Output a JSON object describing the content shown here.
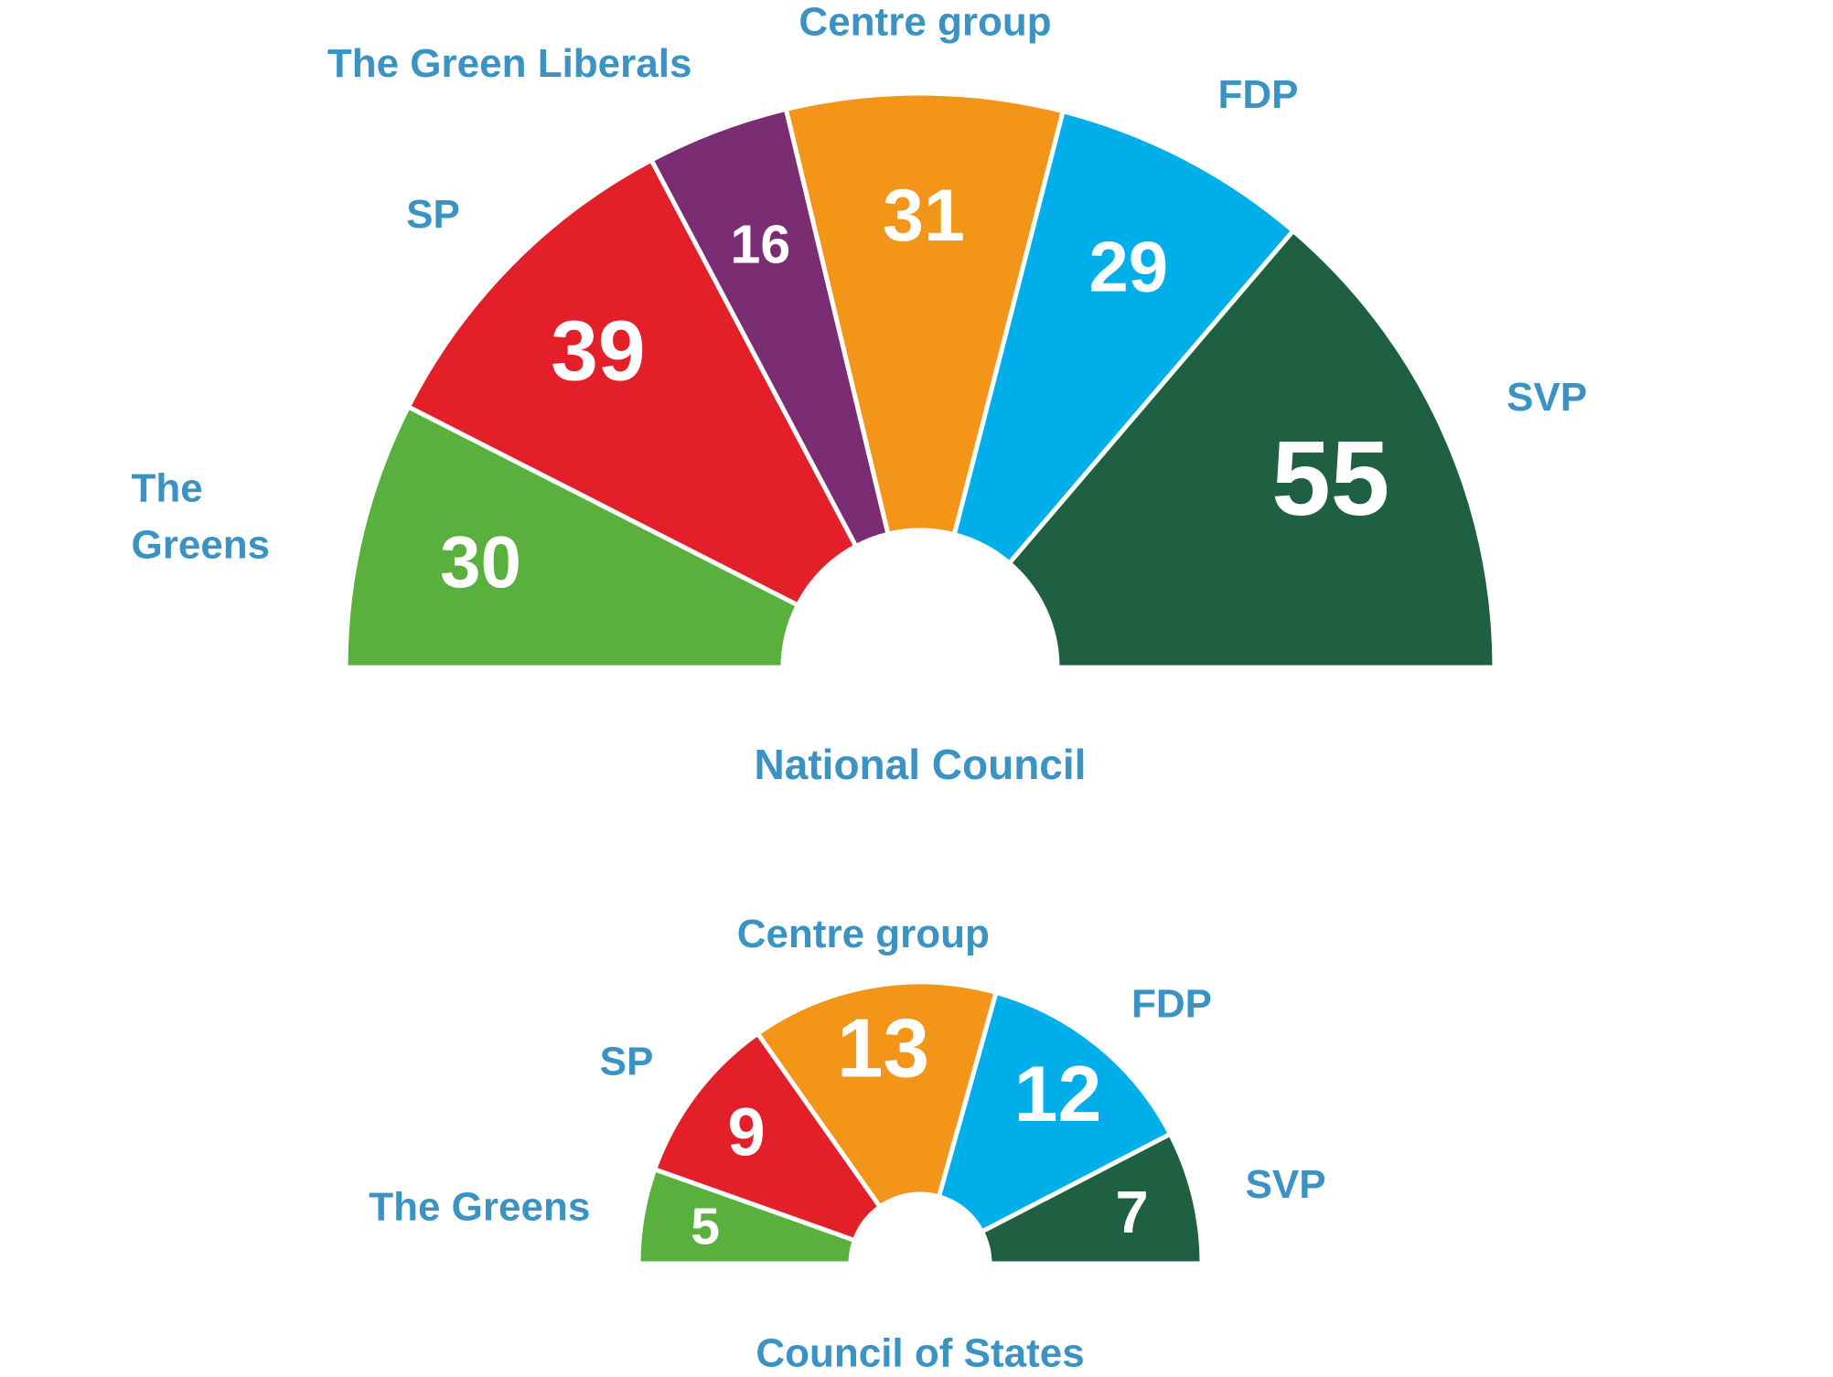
{
  "chart_data": [
    {
      "type": "pie",
      "title": "National Council",
      "series": [
        {
          "name": "The Greens",
          "value": 30,
          "color": "#5ab03c",
          "label_lines": [
            "The",
            "Greens"
          ]
        },
        {
          "name": "SP",
          "value": 39,
          "color": "#e3202a",
          "label_lines": [
            "SP"
          ]
        },
        {
          "name": "The Green Liberals",
          "value": 16,
          "color": "#7b2d74",
          "label_lines": [
            "The Green Liberals"
          ]
        },
        {
          "name": "Centre group",
          "value": 31,
          "color": "#f39519",
          "label_lines": [
            "Centre group"
          ]
        },
        {
          "name": "FDP",
          "value": 29,
          "color": "#00aee9",
          "label_lines": [
            "FDP"
          ]
        },
        {
          "name": "SVP",
          "value": 55,
          "color": "#1e6041",
          "label_lines": [
            "SVP"
          ]
        }
      ]
    },
    {
      "type": "pie",
      "title": "Council of States",
      "series": [
        {
          "name": "The Greens",
          "value": 5,
          "color": "#5ab03c",
          "label_lines": [
            "The Greens"
          ]
        },
        {
          "name": "SP",
          "value": 9,
          "color": "#e3202a",
          "label_lines": [
            "SP"
          ]
        },
        {
          "name": "Centre group",
          "value": 13,
          "color": "#f39519",
          "label_lines": [
            "Centre group"
          ]
        },
        {
          "name": "FDP",
          "value": 12,
          "color": "#00aee9",
          "label_lines": [
            "FDP"
          ]
        },
        {
          "name": "SVP",
          "value": 7,
          "color": "#1e6041",
          "label_lines": [
            "SVP"
          ]
        }
      ]
    }
  ],
  "colors": {
    "label": "#3a93c3",
    "value_text": "#ffffff",
    "separator": "#ffffff"
  }
}
